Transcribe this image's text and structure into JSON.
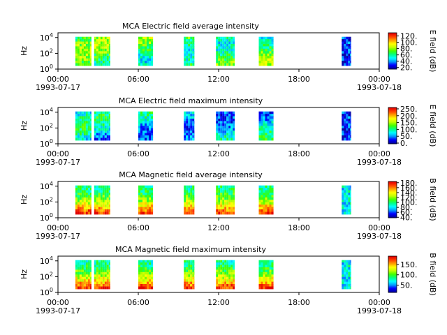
{
  "figure": {
    "title_prefix": "MCA"
  },
  "colors": {
    "colormap": [
      "#0000a0",
      "#0000ff",
      "#00a0ff",
      "#00ffff",
      "#00ff80",
      "#40ff00",
      "#c0ff00",
      "#ffff00",
      "#ffa000",
      "#ff4000",
      "#e00000"
    ],
    "background": "#ffffff"
  },
  "chart_data": [
    {
      "type": "heatmap",
      "title": "MCA  Electric field average intensity",
      "ylabel": "Hz",
      "colorbar_label": "E field (dB)",
      "colorbar_ticks": [
        "20.",
        "40.",
        "60.",
        "80.",
        "100.",
        "120."
      ],
      "colorbar_range": [
        15,
        130
      ],
      "yticks": [
        "10^0",
        "10^2",
        "10^4"
      ],
      "xticks": [
        "00:00\n1993-07-17",
        "06:00",
        "12:00",
        "18:00",
        "00:00\n1993-07-18"
      ],
      "x_hours": [
        0,
        6,
        12,
        18,
        24
      ],
      "segments_hours": [
        [
          1.3,
          2.5
        ],
        [
          2.7,
          3.9
        ],
        [
          6.0,
          7.1
        ],
        [
          9.4,
          10.2
        ],
        [
          11.8,
          13.2
        ],
        [
          15.0,
          16.1
        ],
        [
          21.2,
          21.9
        ]
      ],
      "base_level": 0.45
    },
    {
      "type": "heatmap",
      "title": "MCA  Electric field maximum intensity",
      "ylabel": "Hz",
      "colorbar_label": "E field (dB)",
      "colorbar_ticks": [
        "0.",
        "50.",
        "100.",
        "150.",
        "200.",
        "250."
      ],
      "colorbar_range": [
        -5,
        260
      ],
      "yticks": [
        "10^0",
        "10^2",
        "10^4"
      ],
      "xticks": [
        "00:00\n1993-07-17",
        "06:00",
        "12:00",
        "18:00",
        "00:00\n1993-07-18"
      ],
      "x_hours": [
        0,
        6,
        12,
        18,
        24
      ],
      "segments_hours": [
        [
          1.3,
          2.5
        ],
        [
          2.7,
          3.9
        ],
        [
          6.0,
          7.1
        ],
        [
          9.4,
          10.2
        ],
        [
          11.8,
          13.2
        ],
        [
          15.0,
          16.1
        ],
        [
          21.2,
          21.9
        ]
      ],
      "base_level": 0.28
    },
    {
      "type": "heatmap",
      "title": "MCA  Magnetic field average intensity",
      "ylabel": "Hz",
      "colorbar_label": "B field (dB)",
      "colorbar_ticks": [
        "40.",
        "60.",
        "80.",
        "100.",
        "120.",
        "140.",
        "160.",
        "180."
      ],
      "colorbar_range": [
        38,
        185
      ],
      "yticks": [
        "10^0",
        "10^2",
        "10^4"
      ],
      "xticks": [
        "00:00\n1993-07-17",
        "06:00",
        "12:00",
        "18:00",
        "00:00\n1993-07-18"
      ],
      "x_hours": [
        0,
        6,
        12,
        18,
        24
      ],
      "segments_hours": [
        [
          1.3,
          2.5
        ],
        [
          2.7,
          3.9
        ],
        [
          6.0,
          7.1
        ],
        [
          9.4,
          10.2
        ],
        [
          11.8,
          13.2
        ],
        [
          15.0,
          16.1
        ],
        [
          21.2,
          21.9
        ]
      ],
      "base_level": 0.35
    },
    {
      "type": "heatmap",
      "title": "MCA  Magnetic field maximum intensity",
      "ylabel": "Hz",
      "colorbar_label": "B field (dB)",
      "colorbar_ticks": [
        "50.",
        "100.",
        "150."
      ],
      "colorbar_range": [
        15,
        190
      ],
      "yticks": [
        "10^0",
        "10^2",
        "10^4"
      ],
      "xticks": [
        "00:00\n1993-07-17",
        "06:00",
        "12:00",
        "18:00",
        "00:00\n1993-07-18"
      ],
      "x_hours": [
        0,
        6,
        12,
        18,
        24
      ],
      "segments_hours": [
        [
          1.3,
          2.5
        ],
        [
          2.7,
          3.9
        ],
        [
          6.0,
          7.1
        ],
        [
          9.4,
          10.2
        ],
        [
          11.8,
          13.2
        ],
        [
          15.0,
          16.1
        ],
        [
          21.2,
          21.9
        ]
      ],
      "base_level": 0.35
    }
  ]
}
